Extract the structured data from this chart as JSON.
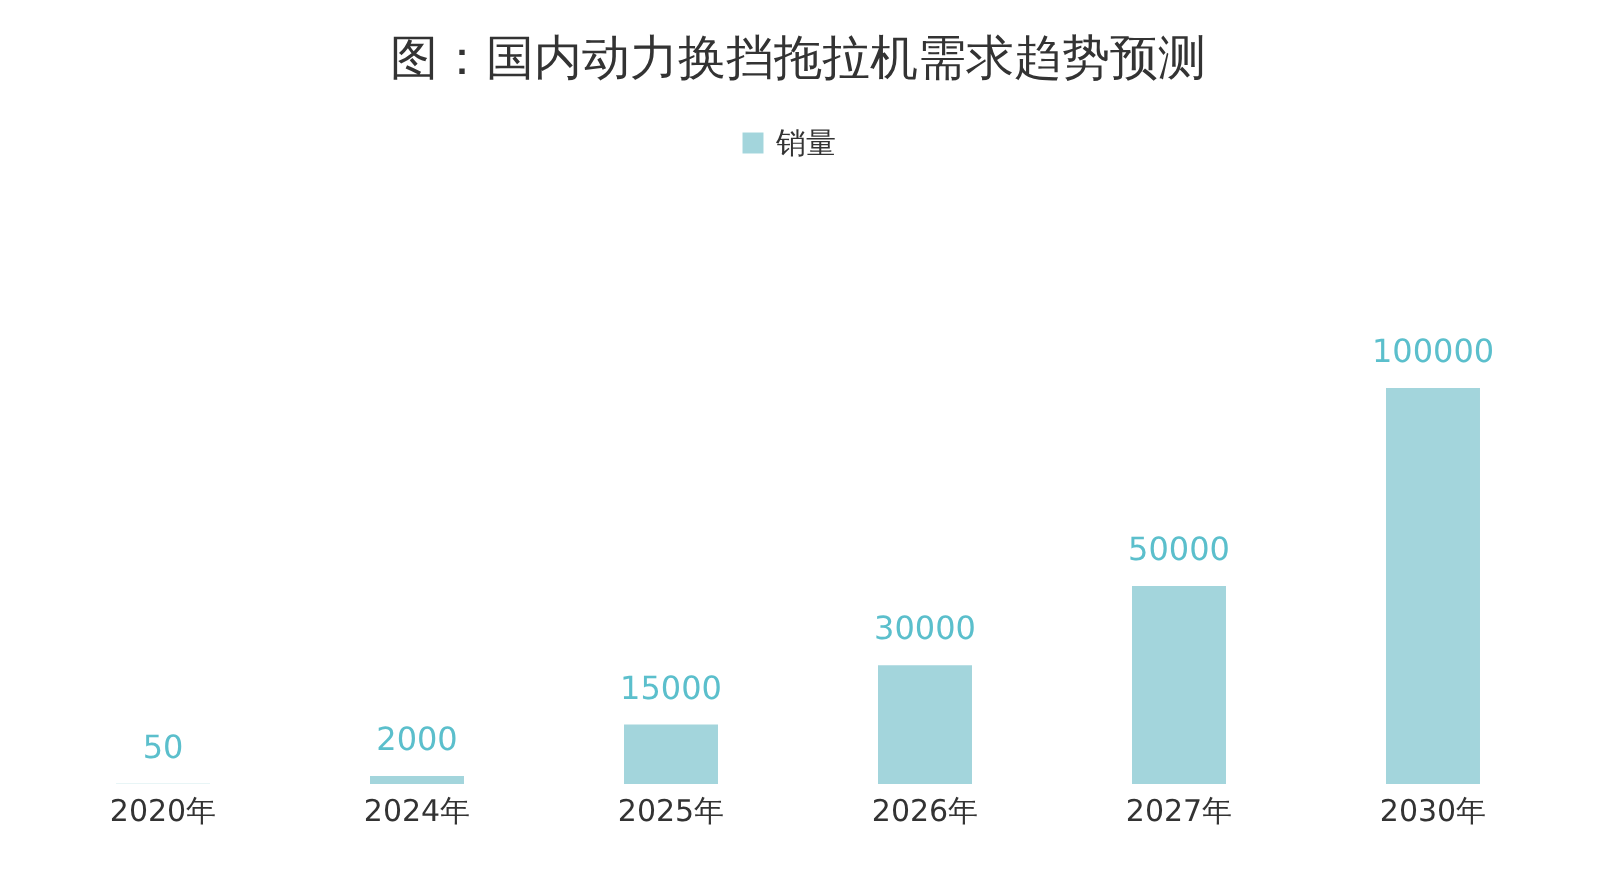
{
  "chart_data": {
    "type": "bar",
    "title": "图：国内动力换挡拖拉机需求趋势预测",
    "categories": [
      "2020年",
      "2024年",
      "2025年",
      "2026年",
      "2027年",
      "2030年"
    ],
    "series": [
      {
        "name": "销量",
        "color": "#a3d5dc",
        "values": [
          50,
          2000,
          15000,
          30000,
          50000,
          100000
        ]
      }
    ],
    "data_labels": true,
    "legend": "top",
    "tick_labels": "x"
  }
}
